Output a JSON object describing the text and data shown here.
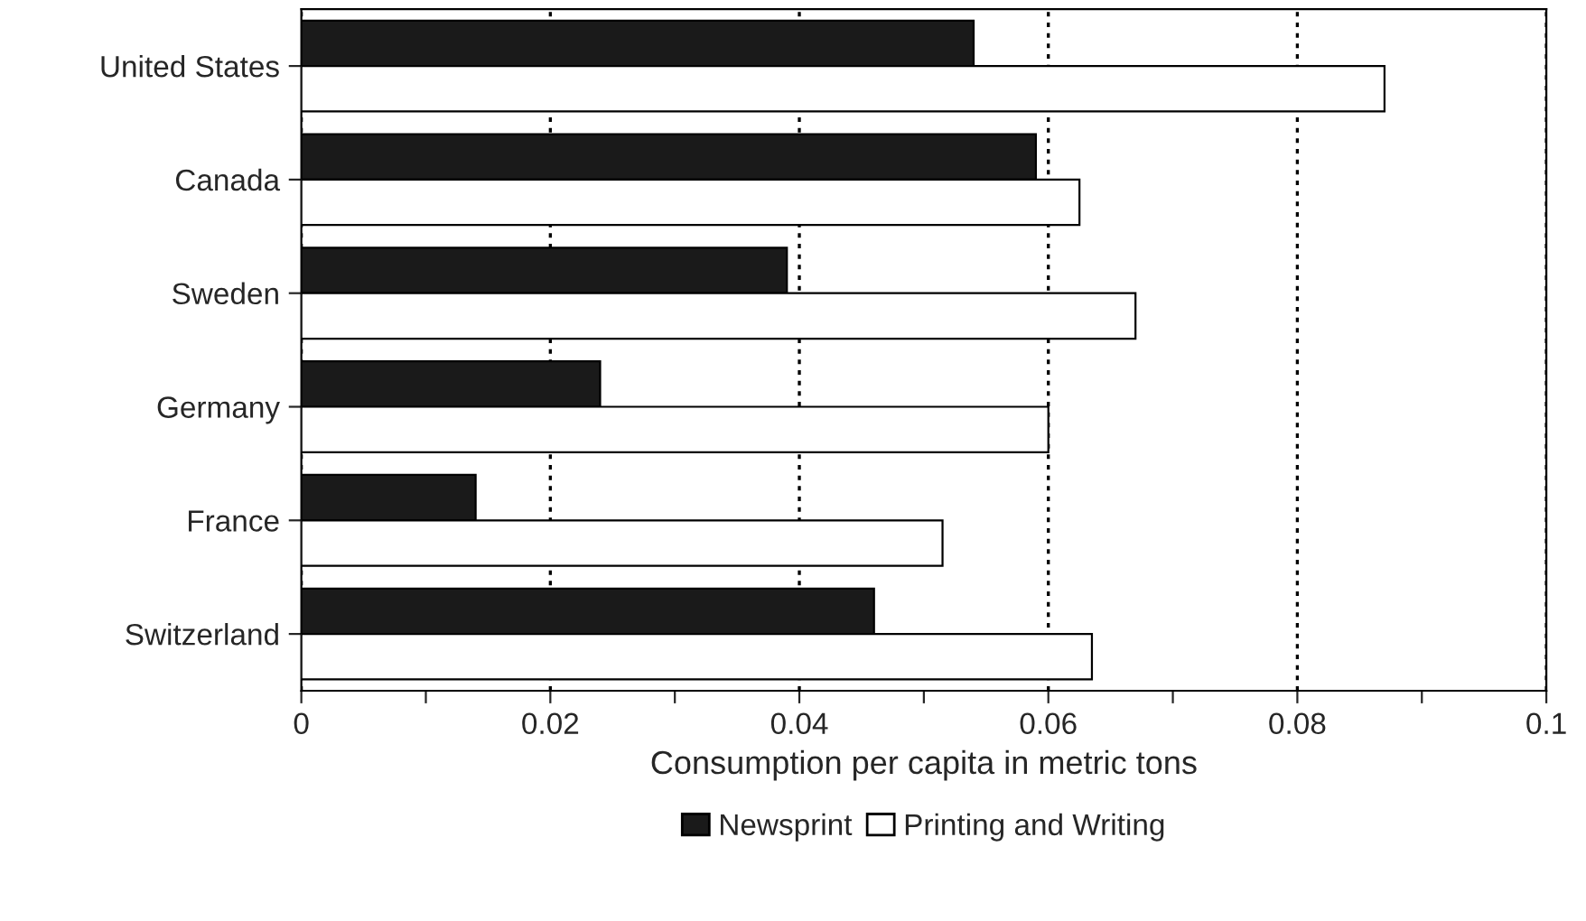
{
  "chart_data": {
    "type": "bar",
    "orientation": "horizontal",
    "xlabel": "Consumption per capita in metric tons",
    "categories": [
      "United States",
      "Canada",
      "Sweden",
      "Germany",
      "France",
      "Switzerland"
    ],
    "series": [
      {
        "name": "Newsprint",
        "color": "#1a1a1a",
        "values": [
          0.054,
          0.059,
          0.039,
          0.024,
          0.014,
          0.046
        ]
      },
      {
        "name": "Printing and Writing",
        "color": "#ffffff",
        "values": [
          0.087,
          0.0625,
          0.067,
          0.06,
          0.0515,
          0.0635
        ]
      }
    ],
    "xlim": [
      0,
      0.1
    ],
    "xticks": [
      0,
      {
        "value": 0.01,
        "label": null
      },
      0.02,
      {
        "value": 0.03,
        "label": null
      },
      0.04,
      {
        "value": 0.05,
        "label": null
      },
      0.06,
      {
        "value": 0.07,
        "label": null
      },
      0.08,
      {
        "value": 0.09,
        "label": null
      },
      0.1
    ],
    "grid": "x",
    "legend": "bottom"
  }
}
